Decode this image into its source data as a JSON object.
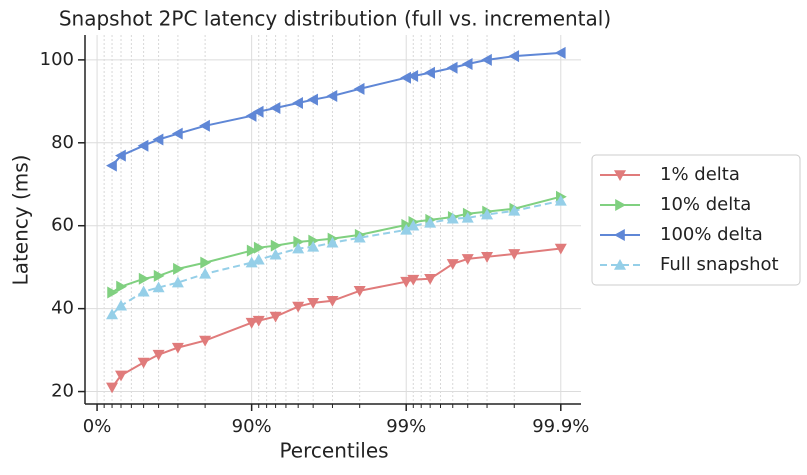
{
  "chart_data": {
    "type": "line",
    "title": "Snapshot 2PC latency distribution (full vs. incremental)",
    "x_label": "Percentiles",
    "y_label": "Latency (ms)",
    "x_scale": "percentile",
    "x": [
      20,
      30,
      50,
      60,
      70,
      80,
      90,
      91,
      93,
      95,
      96,
      97,
      98,
      99,
      99.1,
      99.3,
      99.5,
      99.6,
      99.7,
      99.8,
      99.9
    ],
    "series": [
      {
        "name": "1% delta",
        "color": "#e07b7b",
        "marker": "triangle-down",
        "dash": false,
        "values": [
          21,
          23.9,
          27,
          28.9,
          30.6,
          32.3,
          36.6,
          37.1,
          38.1,
          40.5,
          41.4,
          41.9,
          44.3,
          46.5,
          47,
          47.2,
          50.8,
          52,
          52.5,
          53.2,
          54.5
        ]
      },
      {
        "name": "10% delta",
        "color": "#80d080",
        "marker": "triangle-right",
        "dash": false,
        "values": [
          43.9,
          45.3,
          47.2,
          47.9,
          49.6,
          51.1,
          54,
          54.7,
          55.2,
          56.1,
          56.4,
          56.9,
          57.8,
          60.2,
          60.9,
          61.4,
          62.1,
          62.9,
          63.4,
          64.1,
          67
        ]
      },
      {
        "name": "100% delta",
        "color": "#5f87d6",
        "marker": "triangle-left",
        "dash": false,
        "values": [
          74.5,
          76.9,
          79.3,
          80.8,
          82.2,
          84.1,
          86.5,
          87.5,
          88.4,
          89.6,
          90.4,
          91.3,
          93,
          95.7,
          96.1,
          96.9,
          98.1,
          99,
          100,
          100.9,
          101.7
        ]
      },
      {
        "name": "Full snapshot",
        "color": "#95cfe8",
        "marker": "triangle-up",
        "dash": true,
        "values": [
          38.6,
          40.7,
          44.1,
          45.1,
          46.3,
          48.4,
          51.1,
          51.8,
          53,
          54.5,
          54.9,
          55.9,
          57.1,
          59,
          60,
          60.7,
          61.7,
          61.9,
          62.7,
          63.6,
          66
        ]
      }
    ],
    "xlim": [
      -19.7,
      99.926
    ],
    "xticks": [
      {
        "value": 0,
        "label": "0%"
      },
      {
        "value": 90,
        "label": "90%"
      },
      {
        "value": 99,
        "label": "99%"
      },
      {
        "value": 99.9,
        "label": "99.9%"
      }
    ],
    "xminor_ticks": [
      10,
      20,
      30,
      40,
      50,
      60,
      70,
      80,
      91,
      92,
      93,
      94,
      95,
      96,
      97,
      98,
      99.1,
      99.2,
      99.3,
      99.4,
      99.5,
      99.6,
      99.7,
      99.8
    ],
    "ylim": [
      17,
      106
    ],
    "yticks": [
      20,
      40,
      60,
      80,
      100
    ],
    "grid": true,
    "legend": "outside-right"
  }
}
